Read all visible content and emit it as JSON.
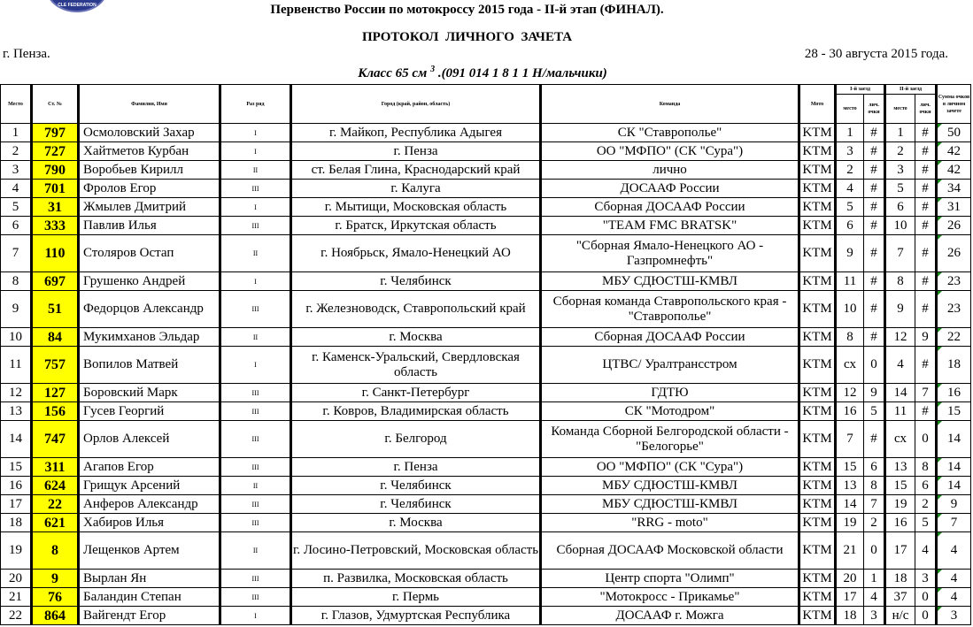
{
  "header": {
    "title": "Первенство России по мотокроссу 2015 года - II-й этап (ФИНАЛ).",
    "subtitle": "ПРОТОКОЛ  ЛИЧНОГО  ЗАЧЕТА",
    "city": "г. Пенза.",
    "dates": "28 - 30 августа 2015 года.",
    "class_prefix": "Класс 65 см",
    "class_sup": "3",
    "class_suffix": ".(091 014 1 8 1 1 Н/мальчики)",
    "logo_text": "CLE FEDERATION"
  },
  "columns": {
    "place": "Место",
    "number": "Ст. №",
    "name": "Фамилия, Имя",
    "rank": "Раз ряд",
    "city": "Город (край, район, область)",
    "team": "Команда",
    "moto": "Мото",
    "race1": "I-й заезд",
    "race2": "II-й заезд",
    "pos": "место",
    "pts": "лич. очки",
    "total": "Сумма очков в личном зачете"
  },
  "rows": [
    [
      "1",
      "797",
      "Осмоловский Захар",
      "I",
      "г. Майкоп, Республика Адыгея",
      "СК \"Ставрополье\"",
      "KTM",
      "1",
      "#",
      "1",
      "#",
      "50"
    ],
    [
      "2",
      "727",
      "Хайтметов Курбан",
      "I",
      "г. Пенза",
      "ОО \"МФПО\" (СК \"Сура\")",
      "KTM",
      "3",
      "#",
      "2",
      "#",
      "42"
    ],
    [
      "3",
      "790",
      "Воробьев Кирилл",
      "II",
      "ст. Белая Глина, Краснодарский край",
      "лично",
      "KTM",
      "2",
      "#",
      "3",
      "#",
      "42"
    ],
    [
      "4",
      "701",
      "Фролов Егор",
      "III",
      "г. Калуга",
      "ДОСААФ России",
      "KTM",
      "4",
      "#",
      "5",
      "#",
      "34"
    ],
    [
      "5",
      "31",
      "Жмылев Дмитрий",
      "I",
      "г. Мытищи, Московская область",
      "Сборная ДОСААФ России",
      "KTM",
      "5",
      "#",
      "6",
      "#",
      "31"
    ],
    [
      "6",
      "333",
      "Павлив Илья",
      "III",
      "г. Братск, Иркутская область",
      "\"TEAM FMC BRATSK\"",
      "KTM",
      "6",
      "#",
      "10",
      "#",
      "26"
    ],
    [
      "7",
      "110",
      "Столяров Остап",
      "II",
      "г. Ноябрьск, Ямало-Ненецкий АО",
      "\"Сборная Ямало-Ненецкого АО - Газпромнефть\"",
      "KTM",
      "9",
      "#",
      "7",
      "#",
      "26"
    ],
    [
      "8",
      "697",
      "Грушенко Андрей",
      "I",
      "г. Челябинск",
      "МБУ СДЮСТШ-КМВЛ",
      "KTM",
      "11",
      "#",
      "8",
      "#",
      "23"
    ],
    [
      "9",
      "51",
      "Федорцов Александр",
      "III",
      "г. Железноводск, Ставропольский край",
      "Сборная команда Ставропольского края - \"Ставрополье\"",
      "KTM",
      "10",
      "#",
      "9",
      "#",
      "23"
    ],
    [
      "10",
      "84",
      "Мукимханов Эльдар",
      "II",
      "г. Москва",
      "Сборная ДОСААФ России",
      "KTM",
      "8",
      "#",
      "12",
      "9",
      "22"
    ],
    [
      "11",
      "757",
      "Вопилов Матвей",
      "I",
      "г. Каменск-Уральский, Свердловская область",
      "ЦТВС/ Уралтрансстром",
      "KTM",
      "сх",
      "0",
      "4",
      "#",
      "18"
    ],
    [
      "12",
      "127",
      "Боровский Марк",
      "III",
      "г. Санкт-Петербург",
      "ГДТЮ",
      "KTM",
      "12",
      "9",
      "14",
      "7",
      "16"
    ],
    [
      "13",
      "156",
      "Гусев Георгий",
      "III",
      "г. Ковров, Владимирская область",
      "СК \"Мотодром\"",
      "KTM",
      "16",
      "5",
      "11",
      "#",
      "15"
    ],
    [
      "14",
      "747",
      "Орлов Алексей",
      "III",
      "г. Белгород",
      "Команда Сборной Белгородской области - \"Белогорье\"",
      "KTM",
      "7",
      "#",
      "сх",
      "0",
      "14"
    ],
    [
      "15",
      "311",
      "Агапов Егор",
      "III",
      "г. Пенза",
      "ОО \"МФПО\" (СК \"Сура\")",
      "KTM",
      "15",
      "6",
      "13",
      "8",
      "14"
    ],
    [
      "16",
      "624",
      "Грищук Арсений",
      "II",
      "г. Челябинск",
      "МБУ СДЮСТШ-КМВЛ",
      "KTM",
      "13",
      "8",
      "15",
      "6",
      "14"
    ],
    [
      "17",
      "22",
      "Анферов Александр",
      "III",
      "г.  Челябинск",
      "МБУ СДЮСТШ-КМВЛ",
      "KTM",
      "14",
      "7",
      "19",
      "2",
      "9"
    ],
    [
      "18",
      "621",
      "Хабиров Илья",
      "III",
      "г. Москва",
      "\"RRG - moto\"",
      "KTM",
      "19",
      "2",
      "16",
      "5",
      "7"
    ],
    [
      "19",
      "8",
      "Лещенков Артем",
      "II",
      "г. Лосино-Петровский, Московская область",
      "Сборная ДОСААФ Московской области",
      "KTM",
      "21",
      "0",
      "17",
      "4",
      "4"
    ],
    [
      "20",
      "9",
      "Вырлан Ян",
      "III",
      "п. Развилка, Московская область",
      "Центр спорта \"Олимп\"",
      "KTM",
      "20",
      "1",
      "18",
      "3",
      "4"
    ],
    [
      "21",
      "76",
      "Баландин Степан",
      "III",
      "г. Пермь",
      "\"Мотокросс - Прикамье\"",
      "KTM",
      "17",
      "4",
      "37",
      "0",
      "4"
    ],
    [
      "22",
      "864",
      "Вайгендт Егор",
      "I",
      "г. Глазов, Удмуртская Республика",
      "ДОСААФ г. Можга",
      "KTM",
      "18",
      "3",
      "н/с",
      "0",
      "3"
    ]
  ]
}
